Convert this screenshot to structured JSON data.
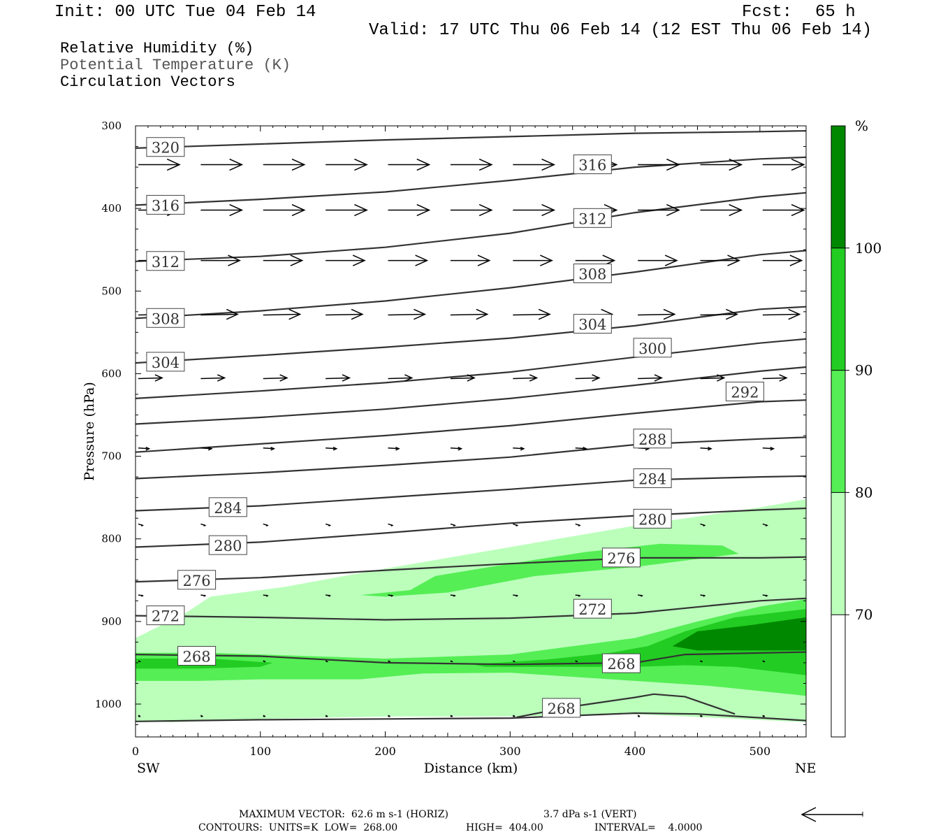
{
  "header": {
    "init": "Init: 00 UTC Tue 04 Feb 14",
    "fcst_label": "Fcst:",
    "fcst_value": "65 h",
    "valid": "Valid: 17 UTC Thu 06 Feb 14 (12 EST Thu 06 Feb 14)"
  },
  "legend": {
    "rh": "Relative Humidity (%)",
    "theta": "Potential Temperature (K)",
    "vectors": "Circulation Vectors"
  },
  "chart_data": {
    "type": "cross-section",
    "xlabel": "Distance (km)",
    "ylabel": "Pressure (hPa)",
    "xlim": [
      0,
      537
    ],
    "ylim": [
      1040,
      300
    ],
    "x_ticks": [
      "0",
      "100",
      "200",
      "300",
      "400",
      "500"
    ],
    "y_ticks": [
      "300",
      "400",
      "500",
      "600",
      "700",
      "800",
      "900",
      "1000"
    ],
    "left_end_label": "SW",
    "right_end_label": "NE",
    "colorbar": {
      "unit": "%",
      "levels": [
        "70",
        "80",
        "90",
        "100"
      ],
      "colors": [
        "#ffffff",
        "#bbffbb",
        "#55ee55",
        "#22cc22",
        "#008800"
      ]
    },
    "rh_fields": [
      {
        "level": "70-80",
        "color": "#bbffbb",
        "points": [
          [
            0,
            920
          ],
          [
            40,
            890
          ],
          [
            60,
            870
          ],
          [
            120,
            858
          ],
          [
            200,
            836
          ],
          [
            300,
            810
          ],
          [
            400,
            784
          ],
          [
            500,
            762
          ],
          [
            537,
            752
          ],
          [
            537,
            1022
          ],
          [
            400,
            1012
          ],
          [
            300,
            1015
          ],
          [
            200,
            1015
          ],
          [
            100,
            1018
          ],
          [
            30,
            1022
          ],
          [
            0,
            1020
          ]
        ]
      },
      {
        "level": "80-90",
        "color": "#55ee55",
        "points": [
          [
            0,
            938
          ],
          [
            60,
            938
          ],
          [
            120,
            941
          ],
          [
            200,
            945
          ],
          [
            300,
            940
          ],
          [
            400,
            920
          ],
          [
            450,
            900
          ],
          [
            500,
            882
          ],
          [
            537,
            873
          ],
          [
            537,
            990
          ],
          [
            460,
            978
          ],
          [
            400,
            972
          ],
          [
            300,
            962
          ],
          [
            230,
            963
          ],
          [
            180,
            970
          ],
          [
            100,
            970
          ],
          [
            50,
            972
          ],
          [
            0,
            972
          ]
        ]
      },
      {
        "level": "80-90",
        "color": "#55ee55",
        "points": [
          [
            180,
            868
          ],
          [
            220,
            862
          ],
          [
            240,
            845
          ],
          [
            300,
            830
          ],
          [
            360,
            816
          ],
          [
            420,
            806
          ],
          [
            470,
            808
          ],
          [
            483,
            818
          ],
          [
            400,
            834
          ],
          [
            320,
            845
          ],
          [
            250,
            865
          ],
          [
            200,
            870
          ]
        ]
      },
      {
        "level": "90-100",
        "color": "#22cc22",
        "points": [
          [
            0,
            945
          ],
          [
            60,
            945
          ],
          [
            110,
            950
          ],
          [
            100,
            955
          ],
          [
            50,
            957
          ],
          [
            0,
            957
          ]
        ]
      },
      {
        "level": "90-100",
        "color": "#22cc22",
        "points": [
          [
            270,
            952
          ],
          [
            330,
            946
          ],
          [
            380,
            938
          ],
          [
            410,
            930
          ],
          [
            440,
            912
          ],
          [
            480,
            895
          ],
          [
            537,
            885
          ],
          [
            537,
            965
          ],
          [
            480,
            955
          ],
          [
            440,
            953
          ],
          [
            400,
            955
          ],
          [
            330,
            955
          ],
          [
            280,
            955
          ]
        ]
      },
      {
        "level": "100",
        "color": "#008800",
        "points": [
          [
            430,
            930
          ],
          [
            450,
            912
          ],
          [
            490,
            905
          ],
          [
            537,
            895
          ],
          [
            537,
            935
          ],
          [
            490,
            935
          ],
          [
            450,
            935
          ]
        ]
      }
    ],
    "theta_contours": [
      {
        "value": "320",
        "label_at": [
          24,
          326
        ],
        "points": [
          [
            0,
            327
          ],
          [
            100,
            322
          ],
          [
            200,
            317
          ],
          [
            300,
            313
          ],
          [
            400,
            309
          ],
          [
            500,
            307
          ],
          [
            537,
            306
          ]
        ]
      },
      {
        "value": "316",
        "label_at": [
          24,
          396
        ],
        "points": [
          [
            0,
            396
          ],
          [
            100,
            389
          ],
          [
            200,
            380
          ],
          [
            300,
            366
          ],
          [
            400,
            350
          ],
          [
            500,
            340
          ],
          [
            537,
            338
          ]
        ]
      },
      {
        "value": "316",
        "label_at": [
          366,
          347
        ],
        "points": []
      },
      {
        "value": "312",
        "label_at": [
          24,
          464
        ],
        "points": [
          [
            0,
            464
          ],
          [
            100,
            458
          ],
          [
            200,
            447
          ],
          [
            300,
            430
          ],
          [
            400,
            405
          ],
          [
            500,
            386
          ],
          [
            537,
            381
          ]
        ]
      },
      {
        "value": "312",
        "label_at": [
          366,
          412
        ],
        "points": []
      },
      {
        "value": "308",
        "label_at": [
          24,
          533
        ],
        "points": [
          [
            0,
            533
          ],
          [
            100,
            524
          ],
          [
            200,
            512
          ],
          [
            300,
            496
          ],
          [
            400,
            477
          ],
          [
            500,
            456
          ],
          [
            537,
            451
          ]
        ]
      },
      {
        "value": "308",
        "label_at": [
          366,
          479
        ],
        "points": []
      },
      {
        "value": "304",
        "label_at": [
          24,
          586
        ],
        "points": [
          [
            0,
            587
          ],
          [
            100,
            578
          ],
          [
            200,
            568
          ],
          [
            300,
            557
          ],
          [
            400,
            542
          ],
          [
            500,
            522
          ],
          [
            537,
            519
          ]
        ]
      },
      {
        "value": "304",
        "label_at": [
          366,
          540
        ],
        "points": []
      },
      {
        "value": "300",
        "label_at": [
          414,
          569
        ],
        "points": [
          [
            0,
            630
          ],
          [
            100,
            621
          ],
          [
            200,
            611
          ],
          [
            300,
            598
          ],
          [
            400,
            580
          ],
          [
            500,
            563
          ],
          [
            537,
            558
          ]
        ]
      },
      {
        "value": "296",
        "label_at": null,
        "points": [
          [
            0,
            661
          ],
          [
            100,
            653
          ],
          [
            200,
            643
          ],
          [
            300,
            630
          ],
          [
            400,
            614
          ],
          [
            500,
            597
          ],
          [
            537,
            592
          ]
        ]
      },
      {
        "value": "292",
        "label_at": [
          488,
          622
        ],
        "points": [
          [
            0,
            695
          ],
          [
            100,
            685
          ],
          [
            200,
            675
          ],
          [
            300,
            663
          ],
          [
            400,
            648
          ],
          [
            500,
            634
          ],
          [
            537,
            632
          ]
        ]
      },
      {
        "value": "288",
        "label_at": [
          414,
          679
        ],
        "points": [
          [
            0,
            727
          ],
          [
            100,
            720
          ],
          [
            200,
            711
          ],
          [
            300,
            701
          ],
          [
            400,
            686
          ],
          [
            500,
            679
          ],
          [
            537,
            677
          ]
        ]
      },
      {
        "value": "284",
        "label_at": [
          414,
          727
        ],
        "points": [
          [
            0,
            766
          ],
          [
            100,
            760
          ],
          [
            200,
            750
          ],
          [
            300,
            740
          ],
          [
            400,
            729
          ],
          [
            500,
            725
          ],
          [
            537,
            724
          ]
        ]
      },
      {
        "value": "284",
        "label_at": [
          74,
          762
        ],
        "points": []
      },
      {
        "value": "280",
        "label_at": [
          414,
          776
        ],
        "points": [
          [
            0,
            810
          ],
          [
            100,
            804
          ],
          [
            200,
            793
          ],
          [
            300,
            781
          ],
          [
            400,
            772
          ],
          [
            500,
            765
          ],
          [
            537,
            763
          ]
        ]
      },
      {
        "value": "280",
        "label_at": [
          74,
          808
        ],
        "points": []
      },
      {
        "value": "276",
        "label_at": [
          389,
          823
        ],
        "points": [
          [
            0,
            852
          ],
          [
            100,
            847
          ],
          [
            200,
            838
          ],
          [
            300,
            830
          ],
          [
            400,
            823
          ],
          [
            500,
            823
          ],
          [
            537,
            822
          ]
        ]
      },
      {
        "value": "276",
        "label_at": [
          49,
          850
        ],
        "points": []
      },
      {
        "value": "272",
        "label_at": [
          366,
          885
        ],
        "points": [
          [
            0,
            893
          ],
          [
            100,
            895
          ],
          [
            200,
            898
          ],
          [
            300,
            896
          ],
          [
            400,
            890
          ],
          [
            500,
            875
          ],
          [
            537,
            872
          ]
        ]
      },
      {
        "value": "272",
        "label_at": [
          24,
          893
        ],
        "points": []
      },
      {
        "value": "268",
        "label_at": [
          49,
          942
        ],
        "points": [
          [
            0,
            940
          ],
          [
            100,
            942
          ],
          [
            200,
            950
          ],
          [
            300,
            952
          ],
          [
            400,
            950
          ],
          [
            440,
            940
          ],
          [
            537,
            937
          ]
        ]
      },
      {
        "value": "268",
        "label_at": [
          389,
          951
        ],
        "points": []
      },
      {
        "value": "268",
        "label_at": [
          341,
          1005
        ],
        "points": [
          [
            305,
            1016
          ],
          [
            350,
            1003
          ],
          [
            400,
            992
          ],
          [
            415,
            988
          ],
          [
            440,
            991
          ],
          [
            480,
            1012
          ]
        ]
      },
      {
        "value": "",
        "label_at": null,
        "points": [
          [
            0,
            1021
          ],
          [
            100,
            1019
          ],
          [
            200,
            1018
          ],
          [
            300,
            1017
          ],
          [
            400,
            1011
          ],
          [
            450,
            1012
          ],
          [
            537,
            1020
          ]
        ]
      }
    ],
    "vector_rows": [
      {
        "p": 347,
        "len": 0.95,
        "dy": 0
      },
      {
        "p": 402,
        "len": 0.95,
        "dy": 0
      },
      {
        "p": 463,
        "len": 0.9,
        "dy": 0
      },
      {
        "p": 529,
        "len": 0.85,
        "dy": -1
      },
      {
        "p": 606,
        "len": 0.55,
        "dy": -1
      },
      {
        "p": 690,
        "len": 0.25,
        "dy": 1
      },
      {
        "p": 782,
        "len": 0.1,
        "dy": 2
      },
      {
        "p": 868,
        "len": 0.1,
        "dy": 1
      },
      {
        "p": 948,
        "len": 0.05,
        "dy": 1
      },
      {
        "p": 1015,
        "len": 0.02,
        "dy": 0
      }
    ],
    "vector_columns_km": [
      0,
      50,
      100,
      150,
      200,
      250,
      300,
      350,
      400,
      450,
      500
    ],
    "footer": {
      "max_vector": "MAXIMUM VECTOR:  62.6 m s-1 (HORIZ)",
      "vert": "3.7 dPa s-1 (VERT)",
      "contours": "CONTOURS:  UNITS=K  LOW=  268.00",
      "high": "HIGH=  404.00",
      "interval": "INTERVAL=    4.0000"
    }
  }
}
